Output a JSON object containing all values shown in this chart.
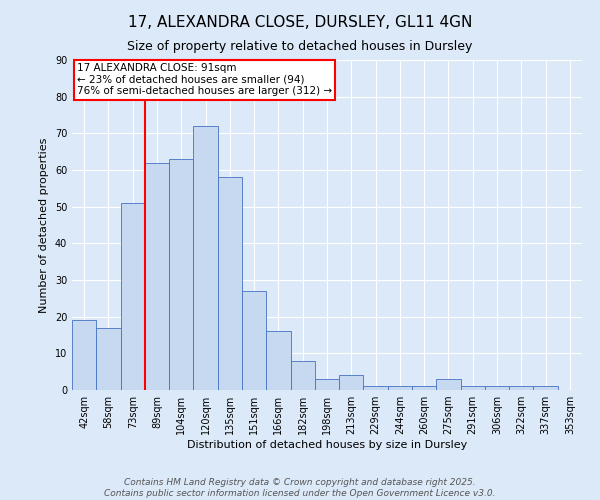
{
  "title": "17, ALEXANDRA CLOSE, DURSLEY, GL11 4GN",
  "subtitle": "Size of property relative to detached houses in Dursley",
  "xlabel": "Distribution of detached houses by size in Dursley",
  "ylabel": "Number of detached properties",
  "bins": [
    "42sqm",
    "58sqm",
    "73sqm",
    "89sqm",
    "104sqm",
    "120sqm",
    "135sqm",
    "151sqm",
    "166sqm",
    "182sqm",
    "198sqm",
    "213sqm",
    "229sqm",
    "244sqm",
    "260sqm",
    "275sqm",
    "291sqm",
    "306sqm",
    "322sqm",
    "337sqm",
    "353sqm"
  ],
  "values": [
    19,
    17,
    51,
    62,
    63,
    72,
    58,
    27,
    16,
    8,
    3,
    4,
    1,
    1,
    1,
    3,
    1,
    1,
    1,
    1
  ],
  "bar_color": "#c6d9f1",
  "bar_edge_color": "#4472c4",
  "vline_x_index": 3.0,
  "vline_color": "red",
  "annotation_text": "17 ALEXANDRA CLOSE: 91sqm\n← 23% of detached houses are smaller (94)\n76% of semi-detached houses are larger (312) →",
  "annotation_box_color": "white",
  "annotation_box_edge_color": "red",
  "ylim": [
    0,
    90
  ],
  "yticks": [
    0,
    10,
    20,
    30,
    40,
    50,
    60,
    70,
    80,
    90
  ],
  "footer": "Contains HM Land Registry data © Crown copyright and database right 2025.\nContains public sector information licensed under the Open Government Licence v3.0.",
  "background_color": "#dce9f8",
  "grid_color": "white",
  "title_fontsize": 11,
  "subtitle_fontsize": 9,
  "axis_label_fontsize": 8,
  "tick_fontsize": 7,
  "annotation_fontsize": 7.5,
  "footer_fontsize": 6.5
}
